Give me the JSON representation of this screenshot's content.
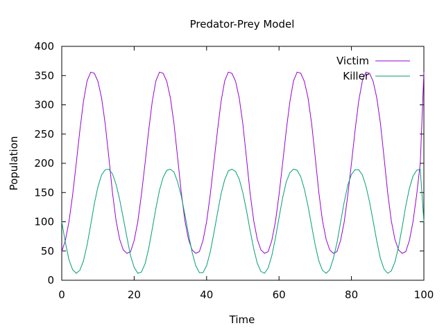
{
  "chart_data": {
    "type": "line",
    "title": "Predator-Prey Model",
    "xlabel": "Time",
    "ylabel": "Population",
    "xlim": [
      0,
      100
    ],
    "ylim": [
      0,
      400
    ],
    "xticks": [
      0,
      20,
      40,
      60,
      80,
      100
    ],
    "yticks": [
      0,
      50,
      100,
      150,
      200,
      250,
      300,
      350,
      400
    ],
    "grid": false,
    "legend_position": "top-right",
    "series": [
      {
        "name": "Victim",
        "color": "#9400d3",
        "points": [
          [
            0,
            49
          ],
          [
            1,
            68
          ],
          [
            2,
            100
          ],
          [
            3,
            146
          ],
          [
            4,
            200
          ],
          [
            5,
            256
          ],
          [
            6,
            306
          ],
          [
            7,
            341
          ],
          [
            8,
            356
          ],
          [
            9,
            354
          ],
          [
            10,
            340
          ],
          [
            11,
            312
          ],
          [
            12,
            268
          ],
          [
            13,
            210
          ],
          [
            14,
            150
          ],
          [
            15,
            102
          ],
          [
            16,
            70
          ],
          [
            17,
            52
          ],
          [
            18,
            46
          ],
          [
            19,
            49
          ],
          [
            20,
            68
          ],
          [
            21,
            100
          ],
          [
            22,
            146
          ],
          [
            23,
            200
          ],
          [
            24,
            256
          ],
          [
            25,
            306
          ],
          [
            26,
            341
          ],
          [
            27,
            356
          ],
          [
            28,
            354
          ],
          [
            29,
            340
          ],
          [
            30,
            312
          ],
          [
            31,
            268
          ],
          [
            32,
            210
          ],
          [
            33,
            150
          ],
          [
            34,
            102
          ],
          [
            35,
            70
          ],
          [
            36,
            52
          ],
          [
            37,
            46
          ],
          [
            38,
            49
          ],
          [
            39,
            68
          ],
          [
            40,
            100
          ],
          [
            41,
            146
          ],
          [
            42,
            200
          ],
          [
            43,
            256
          ],
          [
            44,
            306
          ],
          [
            45,
            341
          ],
          [
            46,
            356
          ],
          [
            47,
            354
          ],
          [
            48,
            340
          ],
          [
            49,
            312
          ],
          [
            50,
            268
          ],
          [
            51,
            210
          ],
          [
            52,
            150
          ],
          [
            53,
            102
          ],
          [
            54,
            70
          ],
          [
            55,
            52
          ],
          [
            56,
            46
          ],
          [
            57,
            49
          ],
          [
            58,
            68
          ],
          [
            59,
            100
          ],
          [
            60,
            146
          ],
          [
            61,
            200
          ],
          [
            62,
            256
          ],
          [
            63,
            306
          ],
          [
            64,
            341
          ],
          [
            65,
            356
          ],
          [
            66,
            354
          ],
          [
            67,
            340
          ],
          [
            68,
            312
          ],
          [
            69,
            268
          ],
          [
            70,
            210
          ],
          [
            71,
            150
          ],
          [
            72,
            102
          ],
          [
            73,
            70
          ],
          [
            74,
            52
          ],
          [
            75,
            46
          ],
          [
            76,
            49
          ],
          [
            77,
            68
          ],
          [
            78,
            100
          ],
          [
            79,
            146
          ],
          [
            80,
            200
          ],
          [
            81,
            256
          ],
          [
            82,
            306
          ],
          [
            83,
            341
          ],
          [
            84,
            356
          ],
          [
            85,
            354
          ],
          [
            86,
            340
          ],
          [
            87,
            312
          ],
          [
            88,
            268
          ],
          [
            89,
            210
          ],
          [
            90,
            150
          ],
          [
            91,
            102
          ],
          [
            92,
            70
          ],
          [
            93,
            52
          ],
          [
            94,
            46
          ],
          [
            95,
            49
          ],
          [
            96,
            68
          ],
          [
            97,
            100
          ],
          [
            98,
            146
          ],
          [
            99,
            200
          ],
          [
            100,
            356
          ]
        ]
      },
      {
        "name": "Killer",
        "color": "#009e73",
        "points": [
          [
            0,
            100
          ],
          [
            1,
            65
          ],
          [
            2,
            35
          ],
          [
            3,
            18
          ],
          [
            4,
            12
          ],
          [
            5,
            17
          ],
          [
            6,
            33
          ],
          [
            7,
            60
          ],
          [
            8,
            95
          ],
          [
            9,
            131
          ],
          [
            10,
            160
          ],
          [
            11,
            180
          ],
          [
            12,
            189
          ],
          [
            13,
            190
          ],
          [
            14,
            182
          ],
          [
            15,
            164
          ],
          [
            16,
            138
          ],
          [
            17,
            106
          ],
          [
            18,
            73
          ],
          [
            19,
            42
          ],
          [
            20,
            22
          ],
          [
            21,
            12
          ],
          [
            22,
            14
          ],
          [
            23,
            28
          ],
          [
            24,
            54
          ],
          [
            25,
            88
          ],
          [
            26,
            123
          ],
          [
            27,
            154
          ],
          [
            28,
            176
          ],
          [
            29,
            188
          ],
          [
            30,
            190
          ],
          [
            31,
            185
          ],
          [
            32,
            168
          ],
          [
            33,
            144
          ],
          [
            34,
            112
          ],
          [
            35,
            79
          ],
          [
            36,
            48
          ],
          [
            37,
            25
          ],
          [
            38,
            13
          ],
          [
            39,
            13
          ],
          [
            40,
            25
          ],
          [
            41,
            48
          ],
          [
            42,
            80
          ],
          [
            43,
            115
          ],
          [
            44,
            148
          ],
          [
            45,
            172
          ],
          [
            46,
            187
          ],
          [
            47,
            190
          ],
          [
            48,
            186
          ],
          [
            49,
            173
          ],
          [
            50,
            150
          ],
          [
            51,
            120
          ],
          [
            52,
            86
          ],
          [
            53,
            54
          ],
          [
            54,
            29
          ],
          [
            55,
            15
          ],
          [
            56,
            12
          ],
          [
            57,
            21
          ],
          [
            58,
            42
          ],
          [
            59,
            72
          ],
          [
            60,
            107
          ],
          [
            61,
            141
          ],
          [
            62,
            168
          ],
          [
            63,
            184
          ],
          [
            64,
            190
          ],
          [
            65,
            188
          ],
          [
            66,
            177
          ],
          [
            67,
            156
          ],
          [
            68,
            127
          ],
          [
            69,
            93
          ],
          [
            70,
            60
          ],
          [
            71,
            33
          ],
          [
            72,
            17
          ],
          [
            73,
            12
          ],
          [
            74,
            18
          ],
          [
            75,
            37
          ],
          [
            76,
            64
          ],
          [
            77,
            99
          ],
          [
            78,
            134
          ],
          [
            79,
            163
          ],
          [
            80,
            181
          ],
          [
            81,
            189
          ],
          [
            82,
            189
          ],
          [
            83,
            180
          ],
          [
            84,
            161
          ],
          [
            85,
            134
          ],
          [
            86,
            101
          ],
          [
            87,
            67
          ],
          [
            88,
            37
          ],
          [
            89,
            19
          ],
          [
            90,
            12
          ],
          [
            91,
            16
          ],
          [
            92,
            31
          ],
          [
            93,
            57
          ],
          [
            94,
            91
          ],
          [
            95,
            127
          ],
          [
            96,
            157
          ],
          [
            97,
            178
          ],
          [
            98,
            188
          ],
          [
            99,
            190
          ],
          [
            100,
            100
          ]
        ]
      }
    ]
  }
}
